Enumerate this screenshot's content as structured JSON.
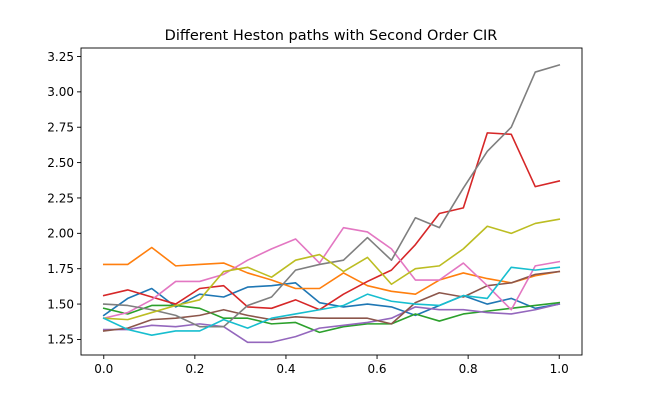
{
  "chart_data": {
    "type": "line",
    "title": "Different Heston paths with Second Order CIR",
    "xlabel": "",
    "ylabel": "",
    "xlim": [
      -0.05,
      1.05
    ],
    "ylim": [
      1.14,
      3.31
    ],
    "xticks": [
      0.0,
      0.2,
      0.4,
      0.6,
      0.8,
      1.0
    ],
    "xtick_labels": [
      "0.0",
      "0.2",
      "0.4",
      "0.6",
      "0.8",
      "1.0"
    ],
    "yticks": [
      1.25,
      1.5,
      1.75,
      2.0,
      2.25,
      2.5,
      2.75,
      3.0,
      3.25
    ],
    "ytick_labels": [
      "1.25",
      "1.50",
      "1.75",
      "2.00",
      "2.25",
      "2.50",
      "2.75",
      "3.00",
      "3.25"
    ],
    "grid": false,
    "x": [
      0.0,
      0.0526,
      0.1053,
      0.1579,
      0.2105,
      0.2632,
      0.3158,
      0.3684,
      0.4211,
      0.4737,
      0.5263,
      0.5789,
      0.6316,
      0.6842,
      0.7368,
      0.7895,
      0.8421,
      0.8947,
      0.9474,
      1.0
    ],
    "series": [
      {
        "color": "#1f77b4",
        "values": [
          1.42,
          1.54,
          1.61,
          1.48,
          1.57,
          1.55,
          1.62,
          1.63,
          1.65,
          1.51,
          1.48,
          1.5,
          1.48,
          1.42,
          1.49,
          1.56,
          1.5,
          1.54,
          1.47,
          1.5
        ]
      },
      {
        "color": "#ff7f0e",
        "values": [
          1.78,
          1.78,
          1.9,
          1.77,
          1.78,
          1.79,
          1.72,
          1.67,
          1.61,
          1.61,
          1.72,
          1.63,
          1.59,
          1.57,
          1.67,
          1.72,
          1.68,
          1.65,
          1.7,
          1.73
        ]
      },
      {
        "color": "#2ca02c",
        "values": [
          1.47,
          1.43,
          1.49,
          1.49,
          1.47,
          1.4,
          1.4,
          1.36,
          1.37,
          1.3,
          1.34,
          1.36,
          1.36,
          1.43,
          1.38,
          1.43,
          1.45,
          1.47,
          1.49,
          1.51
        ]
      },
      {
        "color": "#d62728",
        "values": [
          1.56,
          1.6,
          1.55,
          1.5,
          1.61,
          1.63,
          1.48,
          1.47,
          1.53,
          1.46,
          1.57,
          1.66,
          1.74,
          1.92,
          2.14,
          2.18,
          2.71,
          2.7,
          2.33,
          2.37
        ]
      },
      {
        "color": "#9467bd",
        "values": [
          1.32,
          1.32,
          1.35,
          1.34,
          1.36,
          1.34,
          1.23,
          1.23,
          1.27,
          1.33,
          1.35,
          1.37,
          1.4,
          1.48,
          1.46,
          1.46,
          1.44,
          1.43,
          1.46,
          1.5
        ]
      },
      {
        "color": "#8c564b",
        "values": [
          1.31,
          1.33,
          1.39,
          1.4,
          1.42,
          1.46,
          1.42,
          1.39,
          1.41,
          1.4,
          1.4,
          1.4,
          1.36,
          1.51,
          1.58,
          1.55,
          1.63,
          1.65,
          1.71,
          1.73
        ]
      },
      {
        "color": "#e377c2",
        "values": [
          1.4,
          1.44,
          1.53,
          1.66,
          1.66,
          1.71,
          1.81,
          1.89,
          1.96,
          1.79,
          2.04,
          2.01,
          1.89,
          1.67,
          1.67,
          1.79,
          1.63,
          1.46,
          1.77,
          1.8
        ]
      },
      {
        "color": "#7f7f7f",
        "values": [
          1.5,
          1.49,
          1.46,
          1.42,
          1.34,
          1.34,
          1.49,
          1.55,
          1.74,
          1.78,
          1.81,
          1.97,
          1.81,
          2.11,
          2.04,
          2.32,
          2.58,
          2.75,
          3.14,
          3.19
        ]
      },
      {
        "color": "#bcbd22",
        "values": [
          1.4,
          1.39,
          1.44,
          1.49,
          1.53,
          1.73,
          1.76,
          1.69,
          1.81,
          1.85,
          1.73,
          1.83,
          1.64,
          1.75,
          1.77,
          1.89,
          2.05,
          2.0,
          2.07,
          2.1
        ]
      },
      {
        "color": "#17becf",
        "values": [
          1.4,
          1.32,
          1.28,
          1.31,
          1.31,
          1.39,
          1.33,
          1.4,
          1.43,
          1.46,
          1.49,
          1.57,
          1.52,
          1.5,
          1.49,
          1.56,
          1.54,
          1.76,
          1.74,
          1.76
        ]
      }
    ]
  }
}
